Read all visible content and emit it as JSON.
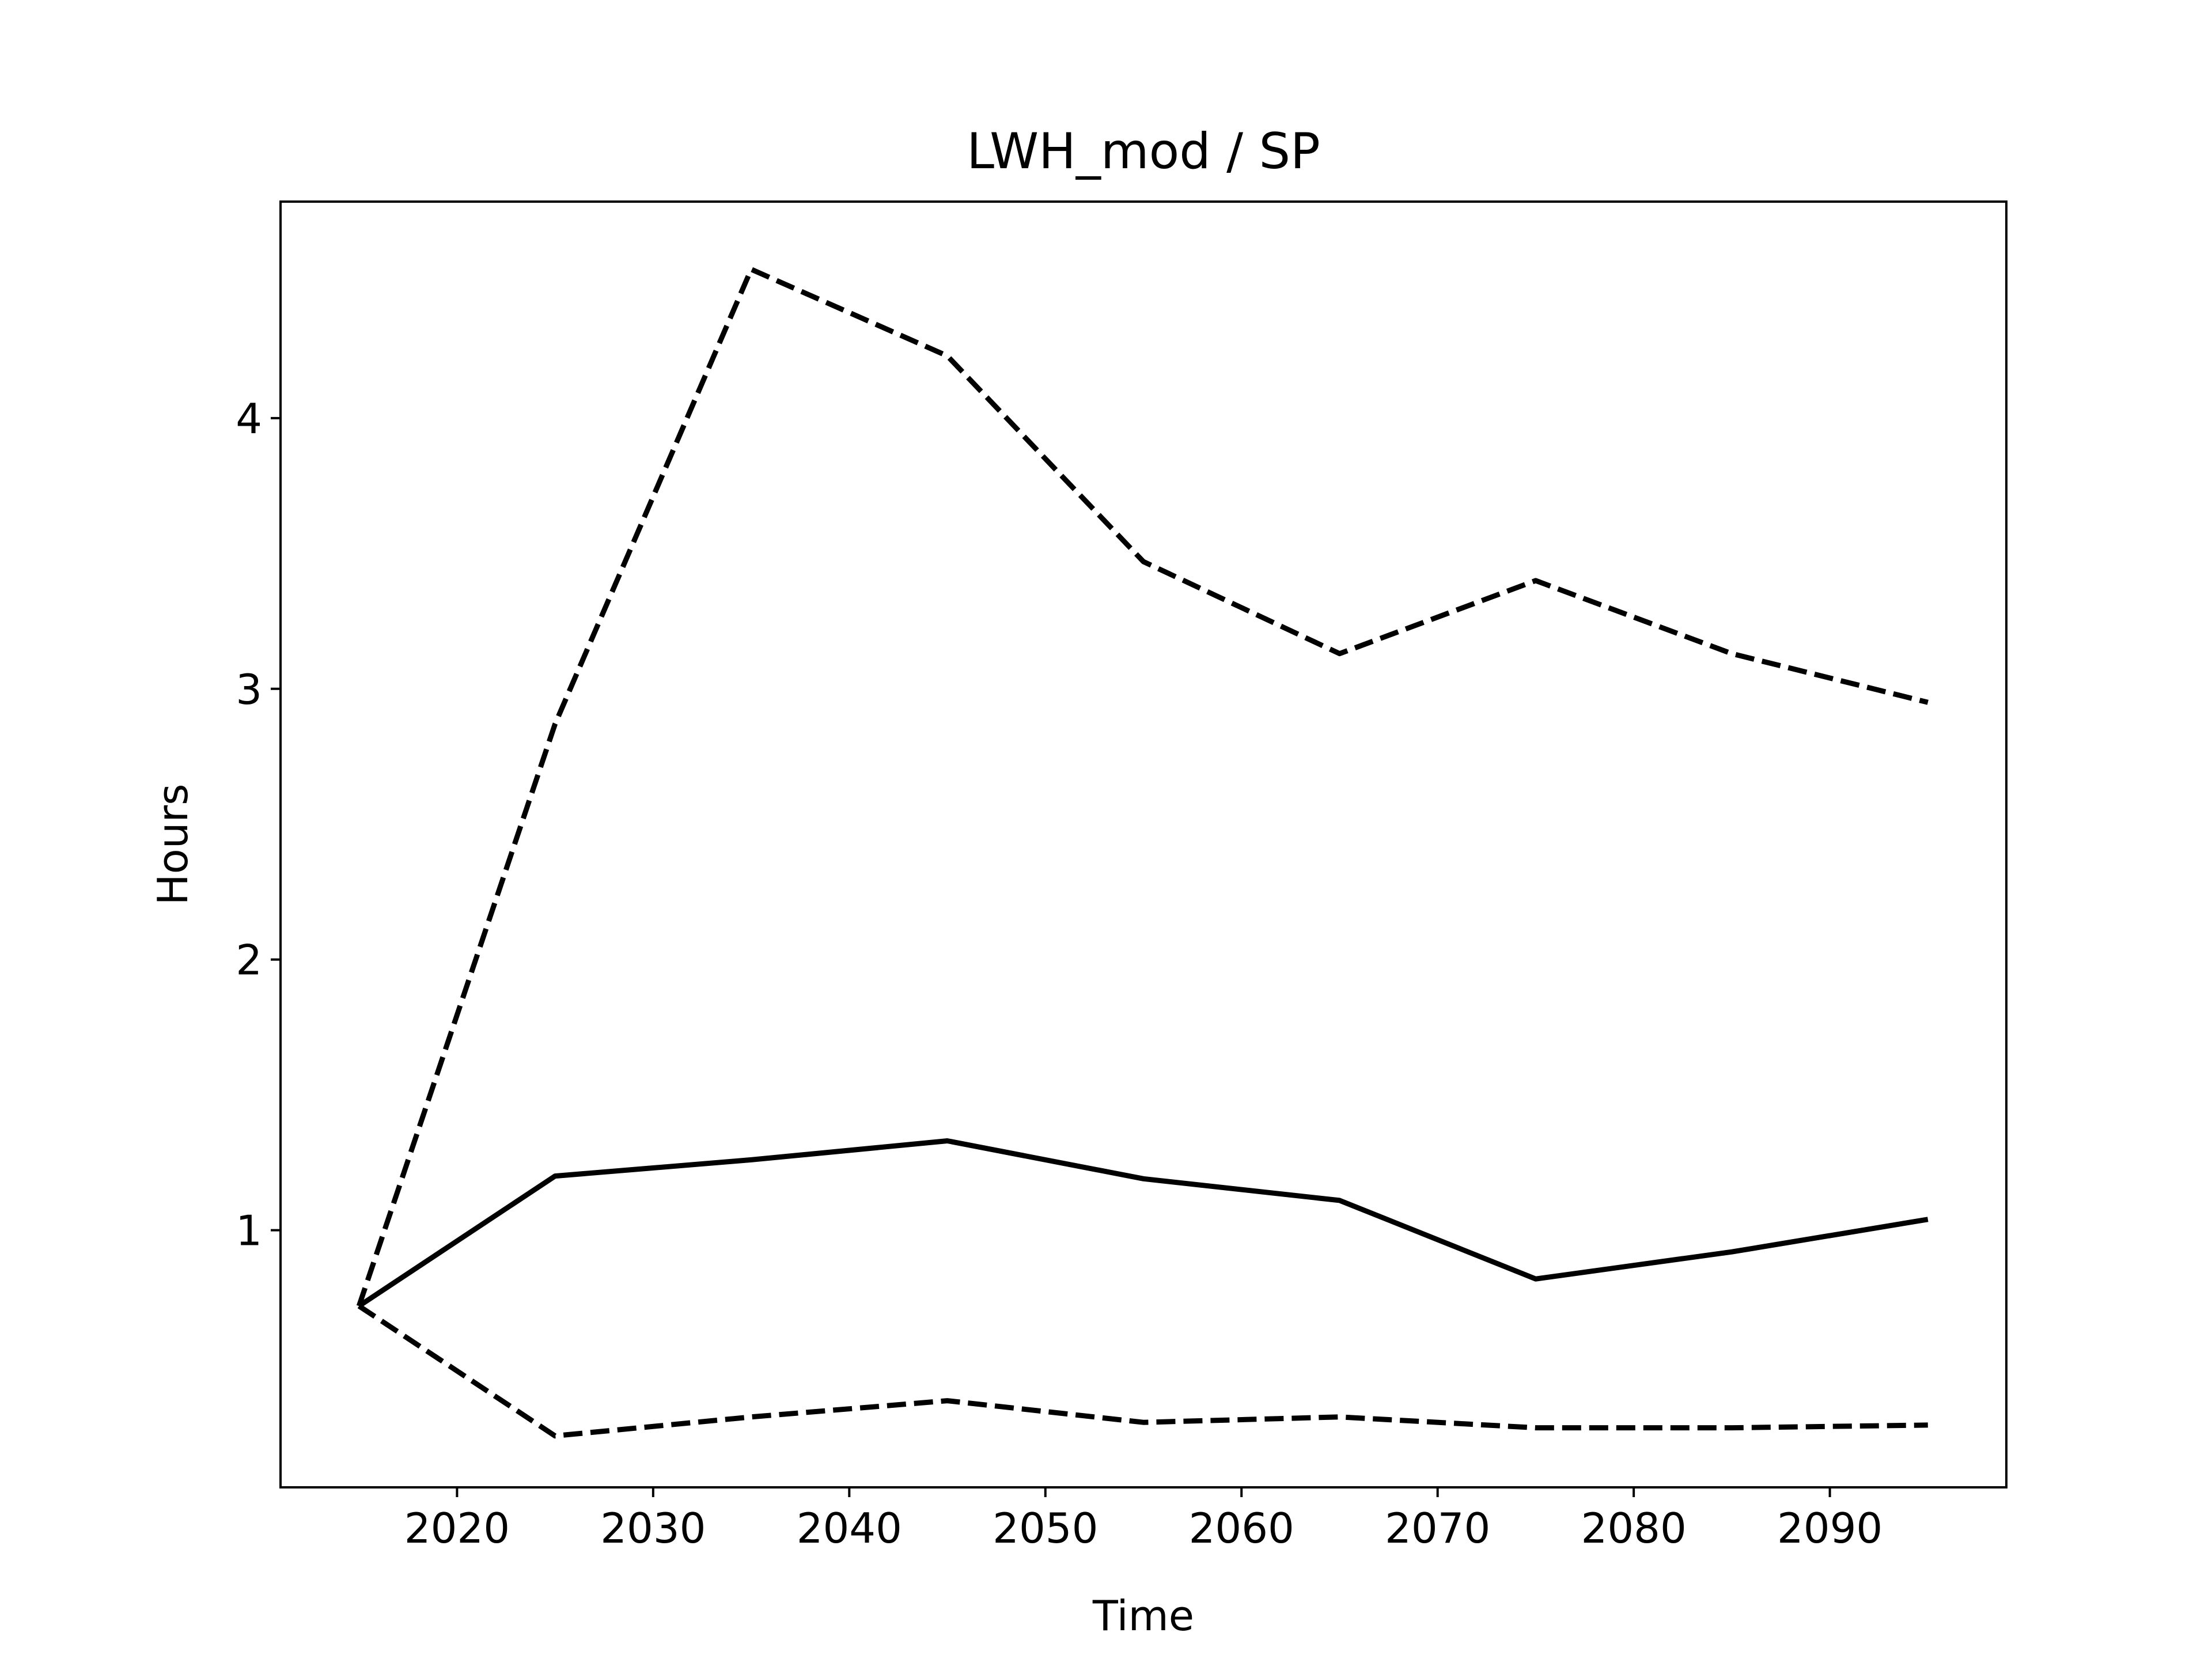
{
  "chart_data": {
    "type": "line",
    "title": "LWH_mod / SP",
    "xlabel": "Time",
    "ylabel": "Hours",
    "xlim": [
      2011,
      2099
    ],
    "ylim": [
      0.05,
      4.8
    ],
    "xticks": [
      2020,
      2030,
      2040,
      2050,
      2060,
      2070,
      2080,
      2090
    ],
    "yticks": [
      1,
      2,
      3,
      4
    ],
    "grid": false,
    "legend": "none",
    "x": [
      2015,
      2025,
      2035,
      2045,
      2055,
      2065,
      2075,
      2085,
      2095
    ],
    "series": [
      {
        "style": "solid",
        "color": "#000000",
        "values": [
          0.72,
          1.2,
          1.26,
          1.33,
          1.19,
          1.11,
          0.82,
          0.92,
          1.04
        ]
      },
      {
        "style": "dashed",
        "color": "#000000",
        "values": [
          0.72,
          2.87,
          4.55,
          4.23,
          3.47,
          3.13,
          3.4,
          3.13,
          2.95
        ]
      },
      {
        "style": "dashed",
        "color": "#000000",
        "values": [
          0.72,
          0.24,
          0.31,
          0.37,
          0.29,
          0.31,
          0.27,
          0.27,
          0.28
        ]
      }
    ]
  }
}
